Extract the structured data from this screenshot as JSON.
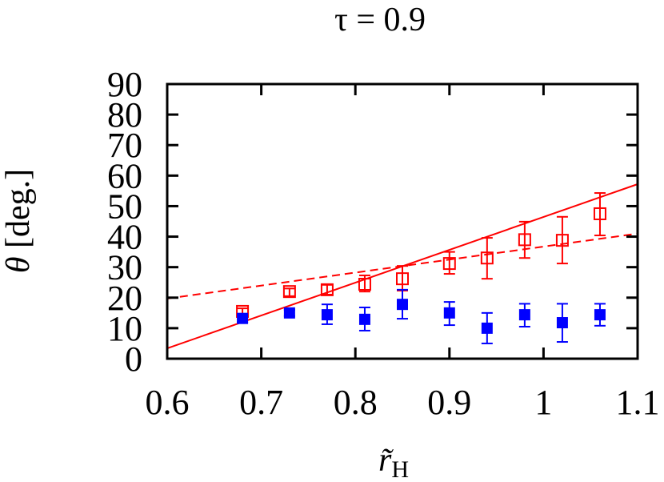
{
  "chart_data": {
    "type": "scatter",
    "title": "τ = 0.9",
    "xlabel": "r̃H",
    "xlabel_main": "r̃",
    "xlabel_sub": "H",
    "ylabel": "θ [deg.]",
    "ylabel_symbol": "θ",
    "ylabel_unit": " [deg.]",
    "xlim": [
      0.6,
      1.1
    ],
    "ylim": [
      0,
      90
    ],
    "xticks": [
      0.6,
      0.7,
      0.8,
      0.9,
      1.0,
      1.1
    ],
    "xtick_labels": [
      "0.6",
      "0.7",
      "0.8",
      "0.9",
      "1",
      "1.1"
    ],
    "yticks": [
      0,
      10,
      20,
      30,
      40,
      50,
      60,
      70,
      80,
      90
    ],
    "ytick_labels": [
      "0",
      "10",
      "20",
      "30",
      "40",
      "50",
      "60",
      "70",
      "80",
      "90"
    ],
    "grid": false,
    "legend": null,
    "series": [
      {
        "name": "open squares (red)",
        "marker": "open-square",
        "color": "#ff0000",
        "x": [
          0.68,
          0.73,
          0.77,
          0.81,
          0.85,
          0.9,
          0.94,
          0.98,
          1.02,
          1.06
        ],
        "y": [
          15.5,
          22.0,
          22.6,
          24.4,
          26.2,
          31.2,
          33.0,
          39.0,
          38.8,
          47.5
        ],
        "y_err_low": [
          14.5,
          20.5,
          21.0,
          22.0,
          22.3,
          27.8,
          26.2,
          33.0,
          31.2,
          40.4
        ],
        "y_err_high": [
          16.5,
          23.0,
          24.2,
          27.3,
          30.4,
          35.0,
          39.6,
          44.9,
          46.5,
          54.3
        ]
      },
      {
        "name": "filled squares (blue)",
        "marker": "filled-square",
        "color": "#0000ff",
        "x": [
          0.68,
          0.73,
          0.77,
          0.81,
          0.85,
          0.9,
          0.94,
          0.98,
          1.02,
          1.06
        ],
        "y": [
          13.2,
          15.0,
          14.4,
          12.9,
          17.8,
          15.0,
          10.0,
          14.4,
          11.8,
          14.4
        ],
        "y_err_low": [
          12.0,
          14.0,
          11.3,
          9.2,
          13.1,
          11.0,
          5.0,
          10.5,
          5.5,
          10.8
        ],
        "y_err_high": [
          14.5,
          16.0,
          17.8,
          16.8,
          22.6,
          18.6,
          15.0,
          18.0,
          18.0,
          18.0
        ]
      },
      {
        "name": "linear fit (solid, red)",
        "type": "line",
        "style": "solid",
        "color": "#ff0000",
        "x": [
          0.6,
          1.1
        ],
        "y": [
          3.4,
          57.2
        ]
      },
      {
        "name": "linear fit (dashed, red)",
        "type": "line",
        "style": "dashed",
        "color": "#ff0000",
        "x": [
          0.6,
          1.1
        ],
        "y": [
          19.7,
          41.0
        ]
      }
    ]
  }
}
